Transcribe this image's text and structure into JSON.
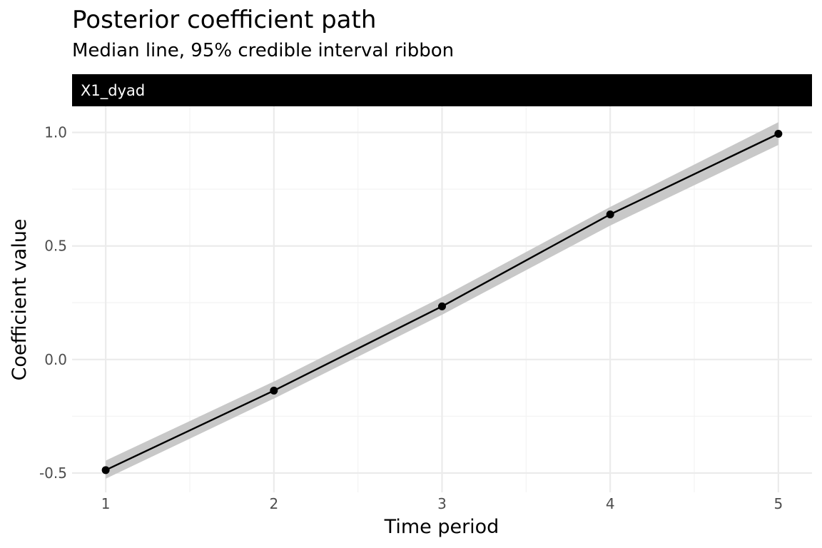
{
  "chart_data": {
    "type": "line",
    "title": "Posterior coefficient path",
    "subtitle": "Median line, 95% credible interval ribbon",
    "facet": "X1_dyad",
    "xlabel": "Time period",
    "ylabel": "Coefficient value",
    "x": [
      1,
      2,
      3,
      4,
      5
    ],
    "series": [
      {
        "median": [
          -0.487,
          -0.137,
          0.234,
          0.639,
          0.994
        ],
        "lower": [
          -0.525,
          -0.172,
          0.197,
          0.59,
          0.945
        ],
        "upper": [
          -0.445,
          -0.097,
          0.275,
          0.672,
          1.045
        ]
      }
    ],
    "x_ticks": [
      1,
      2,
      3,
      4,
      5
    ],
    "x_tick_labels": [
      "1",
      "2",
      "3",
      "4",
      "5"
    ],
    "y_ticks": [
      -0.5,
      0.0,
      0.5,
      1.0
    ],
    "y_tick_labels": [
      "-0.5",
      "0.0",
      "0.5",
      "1.0"
    ],
    "xlim": [
      0.8,
      5.2
    ],
    "ylim": [
      -0.585,
      1.115
    ],
    "grid": true,
    "colors": {
      "line": "#000000",
      "ribbon": "#c8c8c8",
      "grid_major": "#ebebeb",
      "grid_minor": "#f3f3f3",
      "strip_bg": "#000000",
      "strip_text": "#ffffff"
    }
  }
}
